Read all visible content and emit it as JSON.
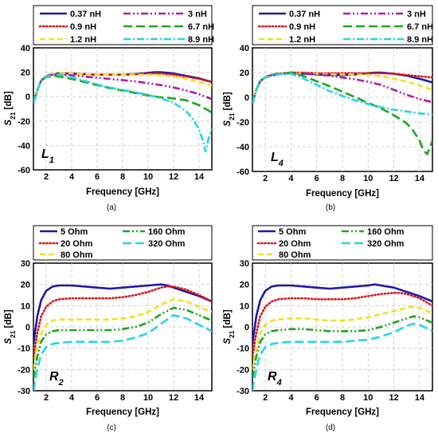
{
  "figure": {
    "captions": [
      "(a)",
      "(b)",
      "(c)",
      "(d)"
    ]
  },
  "chart_data": [
    {
      "type": "line",
      "panel": "(a)",
      "annotation": "L",
      "annotation_sub": "1",
      "xlabel": "Frequency [GHz]",
      "ylabel_main": "S",
      "ylabel_sub": "21",
      "ylabel_unit": " [dB]",
      "xlim": [
        1,
        15
      ],
      "ylim": [
        -60,
        40
      ],
      "xticks": [
        2,
        4,
        6,
        8,
        10,
        12,
        14
      ],
      "yticks": [
        -60,
        -40,
        -20,
        0,
        20,
        40
      ],
      "grid": true,
      "legend_position": "top",
      "series": [
        {
          "name": "0.37 nH",
          "color": "#1a1aa8",
          "style": "solid",
          "x": [
            1,
            1.3,
            1.6,
            2,
            2.5,
            3,
            4,
            5,
            6,
            7,
            8,
            9,
            10,
            10.5,
            11,
            12,
            13,
            14,
            15
          ],
          "y": [
            -5,
            5,
            13,
            17,
            18.5,
            19,
            19,
            18.5,
            18,
            18,
            18,
            18.5,
            19.5,
            20,
            20,
            19,
            17,
            15,
            12
          ]
        },
        {
          "name": "0.9 nH",
          "color": "#e0101a",
          "style": "dotted",
          "x": [
            1,
            1.3,
            1.6,
            2,
            2.5,
            3,
            4,
            5,
            6,
            7,
            8,
            9,
            10,
            11,
            12,
            13,
            14,
            15
          ],
          "y": [
            -5,
            5,
            13,
            17,
            18.5,
            19,
            19,
            18.5,
            18,
            18,
            18,
            18.5,
            19,
            19,
            18,
            16.5,
            14.5,
            12
          ]
        },
        {
          "name": "1.2 nH",
          "color": "#f2e21a",
          "style": "dashed",
          "x": [
            1,
            1.3,
            1.6,
            2,
            2.5,
            3,
            4,
            5,
            6,
            7,
            8,
            9,
            10,
            11,
            12,
            13,
            14,
            15
          ],
          "y": [
            -5,
            5,
            13,
            17,
            18.5,
            19,
            19,
            18.5,
            18,
            18,
            18,
            18,
            18,
            17.5,
            16.5,
            14.5,
            12,
            9
          ]
        },
        {
          "name": "3 nH",
          "color": "#b01ab0",
          "style": "dashdotdot",
          "x": [
            1,
            1.3,
            1.6,
            2,
            2.5,
            3,
            4,
            5,
            6,
            7,
            8,
            9,
            10,
            11,
            12,
            13,
            14,
            15
          ],
          "y": [
            -5,
            5,
            13,
            17,
            18,
            18,
            17.5,
            16.5,
            15.5,
            14.5,
            13.5,
            12.5,
            11,
            9.5,
            7.5,
            5,
            2,
            -2
          ]
        },
        {
          "name": "6.7 nH",
          "color": "#1ea51e",
          "style": "longdash",
          "x": [
            1,
            1.3,
            1.6,
            2,
            2.5,
            3,
            4,
            5,
            6,
            7,
            8,
            9,
            10,
            11,
            12,
            13,
            14,
            15
          ],
          "y": [
            -5,
            5,
            13,
            16,
            17,
            16.5,
            14.5,
            12,
            9.5,
            7,
            5,
            3,
            1,
            -0.5,
            -1.5,
            -3,
            -7,
            -13
          ]
        },
        {
          "name": "8.9 nH",
          "color": "#22d6e8",
          "style": "dashdot",
          "x": [
            1,
            1.3,
            1.6,
            2,
            2.5,
            3,
            4,
            5,
            6,
            7,
            8,
            9,
            10,
            11,
            12,
            13,
            13.5,
            14,
            14.3,
            14.5,
            14.7,
            15
          ],
          "y": [
            -5,
            5,
            13,
            16.5,
            18,
            18,
            16,
            13,
            10,
            7.5,
            5.5,
            3.5,
            1.5,
            -1.5,
            -5,
            -12,
            -18,
            -27,
            -36,
            -45,
            -36,
            -26
          ]
        }
      ]
    },
    {
      "type": "line",
      "panel": "(b)",
      "annotation": "L",
      "annotation_sub": "4",
      "xlabel": "Frequency [GHz]",
      "ylabel_main": "S",
      "ylabel_sub": "21",
      "ylabel_unit": " [dB]",
      "xlim": [
        1,
        15
      ],
      "ylim": [
        -60,
        40
      ],
      "xticks": [
        2,
        4,
        6,
        8,
        10,
        12,
        14
      ],
      "yticks": [
        -60,
        -40,
        -20,
        0,
        20,
        40
      ],
      "grid": true,
      "legend_position": "top",
      "series": [
        {
          "name": "0.37 nH",
          "color": "#1a1aa8",
          "style": "solid",
          "x": [
            1,
            1.3,
            1.6,
            2,
            2.5,
            3,
            4,
            5,
            6,
            7,
            8,
            9,
            10,
            10.5,
            11,
            12,
            13,
            14,
            15
          ],
          "y": [
            -5,
            6,
            13,
            16.5,
            18,
            19,
            19.5,
            19,
            18.5,
            18,
            18,
            18.5,
            19.5,
            20,
            20,
            19,
            17.5,
            15,
            12
          ]
        },
        {
          "name": "0.9 nH",
          "color": "#e0101a",
          "style": "dotted",
          "x": [
            1,
            1.3,
            1.6,
            2,
            2.5,
            3,
            4,
            5,
            6,
            7,
            8,
            9,
            10,
            11,
            12,
            13,
            14,
            15
          ],
          "y": [
            -5,
            6,
            13,
            16.5,
            18,
            19,
            20,
            20,
            19.5,
            19.5,
            19.5,
            19.5,
            19.5,
            19.5,
            19,
            18,
            17,
            16
          ]
        },
        {
          "name": "1.2 nH",
          "color": "#f2e21a",
          "style": "dashed",
          "x": [
            1,
            1.3,
            1.6,
            2,
            2.5,
            3,
            4,
            5,
            6,
            7,
            8,
            9,
            10,
            11,
            12,
            13,
            14,
            15
          ],
          "y": [
            -5,
            6,
            13,
            16.5,
            18,
            19,
            19.5,
            19.5,
            19,
            18.5,
            18.5,
            18.5,
            18,
            17,
            15,
            12.5,
            9.5,
            6
          ]
        },
        {
          "name": "3 nH",
          "color": "#b01ab0",
          "style": "dashdotdot",
          "x": [
            1,
            1.3,
            1.6,
            2,
            2.5,
            3,
            4,
            5,
            6,
            7,
            8,
            9,
            10,
            11,
            12,
            13,
            14,
            15
          ],
          "y": [
            -5,
            6,
            13,
            16,
            18,
            19,
            20,
            19.5,
            18.5,
            17.5,
            16,
            14.5,
            12.5,
            10,
            6,
            2,
            -1.5,
            -4
          ]
        },
        {
          "name": "6.7 nH",
          "color": "#1ea51e",
          "style": "longdash",
          "x": [
            1,
            1.3,
            1.6,
            2,
            2.5,
            3,
            4,
            5,
            6,
            7,
            8,
            9,
            10,
            11,
            12,
            13,
            13.5,
            14,
            14.3,
            14.6,
            15
          ],
          "y": [
            -5,
            6,
            13,
            16,
            17.5,
            18.5,
            20,
            17,
            13,
            9,
            4.5,
            0,
            -4.5,
            -9,
            -14.5,
            -21,
            -27,
            -35,
            -43,
            -46,
            -35
          ]
        },
        {
          "name": "8.9 nH",
          "color": "#22d6e8",
          "style": "dashdot",
          "x": [
            1,
            1.3,
            1.6,
            2,
            2.5,
            3,
            4,
            5,
            6,
            7,
            8,
            9,
            10,
            11,
            12,
            13,
            14,
            15
          ],
          "y": [
            -5,
            6,
            13,
            16,
            17.5,
            18.5,
            19,
            15,
            10,
            5,
            1,
            -2.5,
            -5.5,
            -8,
            -10,
            -11.5,
            -13,
            -14
          ]
        }
      ]
    },
    {
      "type": "line",
      "panel": "(c)",
      "annotation": "R",
      "annotation_sub": "2",
      "xlabel": "Frequency [GHz]",
      "ylabel_main": "S",
      "ylabel_sub": "21",
      "ylabel_unit": " [dB]",
      "xlim": [
        1,
        15
      ],
      "ylim": [
        -30,
        30
      ],
      "xticks": [
        2,
        4,
        6,
        8,
        10,
        12,
        14
      ],
      "yticks": [
        -30,
        -20,
        -10,
        0,
        10,
        20,
        30
      ],
      "grid": true,
      "legend_position": "top",
      "series": [
        {
          "name": "5 Ohm",
          "color": "#1a1aa8",
          "style": "solid",
          "x": [
            1,
            1.3,
            1.6,
            2,
            2.5,
            3,
            4,
            5,
            6,
            7,
            8,
            9,
            10,
            11,
            11.5,
            12,
            13,
            14,
            15
          ],
          "y": [
            -8,
            5,
            12.5,
            17,
            19,
            19.5,
            19.5,
            19,
            18.5,
            18,
            18.5,
            19,
            19.5,
            20,
            19.5,
            18.5,
            16.5,
            14.5,
            12
          ]
        },
        {
          "name": "20 Ohm",
          "color": "#e0101a",
          "style": "dotted",
          "x": [
            1,
            1.3,
            1.6,
            2,
            2.5,
            3,
            4,
            5,
            6,
            7,
            8,
            9,
            10,
            11,
            11.5,
            12,
            13,
            14,
            15
          ],
          "y": [
            -14,
            -3,
            5,
            9.5,
            12,
            13,
            13.5,
            13.5,
            13.5,
            13.5,
            14,
            15,
            16.5,
            18.5,
            19,
            19,
            17.5,
            15,
            12
          ]
        },
        {
          "name": "80 Ohm",
          "color": "#f2e21a",
          "style": "dashed",
          "x": [
            1,
            1.3,
            1.6,
            2,
            2.5,
            3,
            4,
            5,
            6,
            7,
            8,
            9,
            10,
            11,
            12,
            13,
            14,
            15
          ],
          "y": [
            -20,
            -10,
            -3,
            1,
            3,
            3.5,
            3.5,
            3.5,
            3.5,
            3.5,
            4,
            5,
            7,
            10.5,
            13,
            12,
            9.5,
            7
          ]
        },
        {
          "name": "160 Ohm",
          "color": "#1ea51e",
          "style": "dashdotdot",
          "x": [
            1,
            1.3,
            1.6,
            2,
            2.5,
            3,
            4,
            5,
            6,
            7,
            8,
            9,
            10,
            11,
            12,
            13,
            14,
            15
          ],
          "y": [
            -24,
            -14,
            -7,
            -3.5,
            -2,
            -1.5,
            -1.5,
            -1.5,
            -1.5,
            -1.5,
            -1,
            0,
            2,
            6,
            9,
            8,
            5.5,
            3
          ]
        },
        {
          "name": "320 Ohm",
          "color": "#22d6e8",
          "style": "longdash",
          "x": [
            1,
            1.3,
            1.6,
            2,
            2.5,
            3,
            4,
            5,
            6,
            7,
            8,
            9,
            10,
            11,
            12,
            13,
            14,
            15
          ],
          "y": [
            -30,
            -20,
            -13,
            -9.5,
            -8,
            -7.5,
            -7,
            -7,
            -7,
            -7,
            -6.5,
            -5,
            -3,
            1.5,
            5.5,
            4,
            1,
            -2
          ]
        }
      ]
    },
    {
      "type": "line",
      "panel": "(d)",
      "annotation": "R",
      "annotation_sub": "4",
      "xlabel": "Frequency [GHz]",
      "ylabel_main": "S",
      "ylabel_sub": "21",
      "ylabel_unit": " [dB]",
      "xlim": [
        1,
        15
      ],
      "ylim": [
        -30,
        30
      ],
      "xticks": [
        2,
        4,
        6,
        8,
        10,
        12,
        14
      ],
      "yticks": [
        -30,
        -20,
        -10,
        0,
        10,
        20,
        30
      ],
      "grid": true,
      "legend_position": "top",
      "series": [
        {
          "name": "5 Ohm",
          "color": "#1a1aa8",
          "style": "solid",
          "x": [
            1,
            1.3,
            1.6,
            2,
            2.5,
            3,
            4,
            5,
            6,
            7,
            8,
            9,
            10,
            10.5,
            11,
            12,
            13,
            14,
            15
          ],
          "y": [
            -8,
            5,
            12.5,
            17,
            19,
            19.5,
            19.5,
            19,
            18.5,
            18,
            18.5,
            19,
            19.5,
            20,
            19.5,
            18.5,
            16.5,
            14.5,
            12
          ]
        },
        {
          "name": "20 Ohm",
          "color": "#e0101a",
          "style": "dotted",
          "x": [
            1,
            1.3,
            1.6,
            2,
            2.5,
            3,
            4,
            5,
            6,
            7,
            8,
            9,
            10,
            11,
            12,
            12.5,
            13,
            14,
            15
          ],
          "y": [
            -14,
            -3,
            5,
            9.5,
            12,
            13,
            13.5,
            13.5,
            13,
            13,
            13,
            13.5,
            14.5,
            15.5,
            16,
            16,
            15.5,
            13.5,
            10
          ]
        },
        {
          "name": "80 Ohm",
          "color": "#f2e21a",
          "style": "dashed",
          "x": [
            1,
            1.3,
            1.6,
            2,
            2.5,
            3,
            4,
            5,
            6,
            7,
            8,
            9,
            10,
            11,
            12,
            13,
            13.5,
            14,
            15
          ],
          "y": [
            -20,
            -10,
            -3,
            1,
            3,
            3.5,
            4,
            4,
            3.5,
            3,
            3,
            3.5,
            4.5,
            6,
            7.5,
            9,
            9.5,
            9,
            6.5
          ]
        },
        {
          "name": "160 Ohm",
          "color": "#1ea51e",
          "style": "dashdotdot",
          "x": [
            1,
            1.3,
            1.6,
            2,
            2.5,
            3,
            4,
            5,
            6,
            7,
            8,
            9,
            10,
            11,
            12,
            13,
            13.5,
            14,
            15
          ],
          "y": [
            -24,
            -14,
            -7,
            -3.5,
            -2,
            -1.5,
            -1,
            -1,
            -1.5,
            -2,
            -2,
            -2,
            -1.5,
            0,
            2,
            4,
            5,
            4.5,
            2
          ]
        },
        {
          "name": "320 Ohm",
          "color": "#22d6e8",
          "style": "longdash",
          "x": [
            1,
            1.3,
            1.6,
            2,
            2.5,
            3,
            4,
            5,
            6,
            7,
            8,
            9,
            10,
            11,
            12,
            13,
            13.5,
            14,
            15
          ],
          "y": [
            -30,
            -20,
            -13,
            -9.5,
            -8,
            -7.5,
            -7,
            -7,
            -7,
            -7,
            -7,
            -6.5,
            -6,
            -4.5,
            -2.5,
            0.5,
            1.5,
            1,
            -2
          ]
        }
      ]
    }
  ]
}
